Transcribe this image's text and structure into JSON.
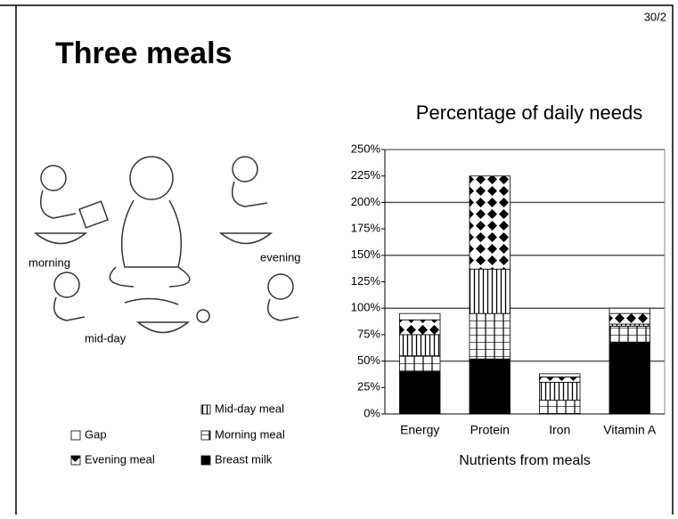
{
  "slide": {
    "title": "Three meals",
    "page_number": "30/2"
  },
  "illustration": {
    "labels": [
      "morning",
      "evening",
      "mid-day"
    ]
  },
  "chart_data": {
    "type": "bar",
    "stacked": true,
    "title": "Percentage of daily needs",
    "x_label": "Nutrients from meals",
    "categories": [
      "Energy",
      "Protein",
      "Iron",
      "Vitamin A"
    ],
    "series": [
      {
        "name": "Breast milk",
        "color": "#000000",
        "values": [
          40,
          52,
          0,
          68
        ]
      },
      {
        "name": "Morning meal",
        "color": "#ffffff",
        "values": [
          15,
          43,
          13,
          15
        ]
      },
      {
        "name": "Mid-day meal",
        "color": "#ffffff",
        "values": [
          20,
          42,
          17,
          2
        ]
      },
      {
        "name": "Evening meal",
        "color": "#ffffff",
        "values": [
          14,
          88,
          5,
          10
        ]
      },
      {
        "name": "Gap",
        "color": "#ffffff",
        "values": [
          6,
          0,
          3,
          5
        ]
      }
    ],
    "ylim": [
      0,
      250
    ],
    "yticks": [
      {
        "value": 0,
        "label": "0%"
      },
      {
        "value": 25,
        "label": "25%"
      },
      {
        "value": 50,
        "label": "50%"
      },
      {
        "value": 75,
        "label": "75%"
      },
      {
        "value": 100,
        "label": "100%"
      },
      {
        "value": 125,
        "label": "125%"
      },
      {
        "value": 150,
        "label": "150%"
      },
      {
        "value": 175,
        "label": "175%"
      },
      {
        "value": 200,
        "label": "200%"
      },
      {
        "value": 225,
        "label": "225%"
      },
      {
        "value": 250,
        "label": "250%"
      }
    ],
    "grid": true
  }
}
